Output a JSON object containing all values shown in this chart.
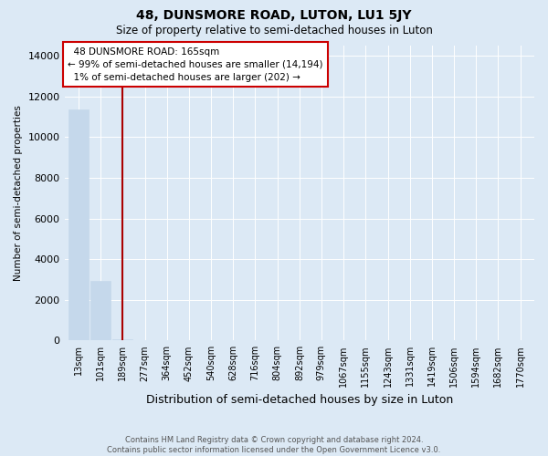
{
  "title": "48, DUNSMORE ROAD, LUTON, LU1 5JY",
  "subtitle": "Size of property relative to semi-detached houses in Luton",
  "xlabel": "Distribution of semi-detached houses by size in Luton",
  "ylabel": "Number of semi-detached properties",
  "footer_line1": "Contains HM Land Registry data © Crown copyright and database right 2024.",
  "footer_line2": "Contains public sector information licensed under the Open Government Licence v3.0.",
  "annotation_line1": "48 DUNSMORE ROAD: 165sqm",
  "annotation_line2": "← 99% of semi-detached houses are smaller (14,194)",
  "annotation_line3": "1% of semi-detached houses are larger (202) →",
  "categories": [
    13,
    101,
    189,
    277,
    364,
    452,
    540,
    628,
    716,
    804,
    892,
    979,
    1067,
    1155,
    1243,
    1331,
    1419,
    1506,
    1594,
    1682,
    1770
  ],
  "values": [
    11350,
    2950,
    50,
    0,
    0,
    0,
    0,
    0,
    0,
    0,
    0,
    0,
    0,
    0,
    0,
    0,
    0,
    0,
    0,
    0,
    0
  ],
  "bar_color": "#c5d8eb",
  "vline_color": "#aa0000",
  "vline_x_index": 2,
  "ylim_max": 14500,
  "yticks": [
    0,
    2000,
    4000,
    6000,
    8000,
    10000,
    12000,
    14000
  ],
  "annotation_box_edgecolor": "#cc0000",
  "bg_color": "#dce9f5",
  "grid_color": "#ffffff",
  "title_fontsize": 10,
  "subtitle_fontsize": 8.5
}
